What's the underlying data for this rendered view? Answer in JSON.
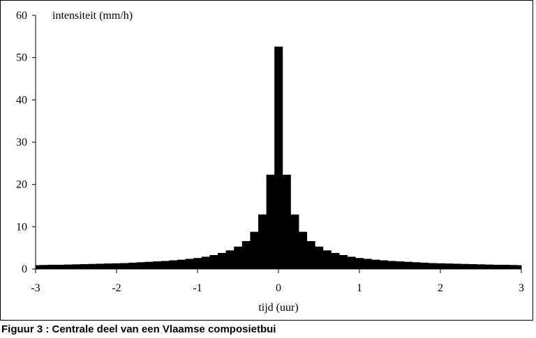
{
  "caption": "Figuur 3 : Centrale deel van een Vlaamse composietbui",
  "chart_data": {
    "type": "bar",
    "title": "",
    "ylabel": "intensiteit (mm/h)",
    "xlabel": "tijd (uur)",
    "xlim": [
      -3,
      3
    ],
    "ylim": [
      0,
      60
    ],
    "x_ticks": [
      "-3",
      "-2",
      "-1",
      "0",
      "1",
      "2",
      "3"
    ],
    "y_ticks": [
      "0",
      "10",
      "20",
      "30",
      "40",
      "50",
      "60"
    ],
    "bar_width": 0.1,
    "bar_color": "#000000",
    "grid": false,
    "bars": [
      {
        "x": -3.0,
        "value": 0.9
      },
      {
        "x": -2.9,
        "value": 0.95
      },
      {
        "x": -2.8,
        "value": 1.0
      },
      {
        "x": -2.7,
        "value": 1.0
      },
      {
        "x": -2.6,
        "value": 1.05
      },
      {
        "x": -2.5,
        "value": 1.1
      },
      {
        "x": -2.4,
        "value": 1.15
      },
      {
        "x": -2.3,
        "value": 1.2
      },
      {
        "x": -2.2,
        "value": 1.25
      },
      {
        "x": -2.1,
        "value": 1.3
      },
      {
        "x": -2.0,
        "value": 1.35
      },
      {
        "x": -1.9,
        "value": 1.4
      },
      {
        "x": -1.8,
        "value": 1.5
      },
      {
        "x": -1.7,
        "value": 1.6
      },
      {
        "x": -1.6,
        "value": 1.7
      },
      {
        "x": -1.5,
        "value": 1.8
      },
      {
        "x": -1.4,
        "value": 1.9
      },
      {
        "x": -1.3,
        "value": 2.05
      },
      {
        "x": -1.2,
        "value": 2.2
      },
      {
        "x": -1.1,
        "value": 2.4
      },
      {
        "x": -1.0,
        "value": 2.6
      },
      {
        "x": -0.9,
        "value": 2.9
      },
      {
        "x": -0.8,
        "value": 3.3
      },
      {
        "x": -0.7,
        "value": 3.8
      },
      {
        "x": -0.6,
        "value": 4.4
      },
      {
        "x": -0.5,
        "value": 5.3
      },
      {
        "x": -0.4,
        "value": 6.6
      },
      {
        "x": -0.3,
        "value": 8.8
      },
      {
        "x": -0.2,
        "value": 12.9
      },
      {
        "x": -0.1,
        "value": 22.3
      },
      {
        "x": 0.0,
        "value": 52.6
      },
      {
        "x": 0.1,
        "value": 22.3
      },
      {
        "x": 0.2,
        "value": 12.9
      },
      {
        "x": 0.3,
        "value": 8.8
      },
      {
        "x": 0.4,
        "value": 6.6
      },
      {
        "x": 0.5,
        "value": 5.3
      },
      {
        "x": 0.6,
        "value": 4.4
      },
      {
        "x": 0.7,
        "value": 3.8
      },
      {
        "x": 0.8,
        "value": 3.3
      },
      {
        "x": 0.9,
        "value": 2.9
      },
      {
        "x": 1.0,
        "value": 2.6
      },
      {
        "x": 1.1,
        "value": 2.4
      },
      {
        "x": 1.2,
        "value": 2.2
      },
      {
        "x": 1.3,
        "value": 2.05
      },
      {
        "x": 1.4,
        "value": 1.9
      },
      {
        "x": 1.5,
        "value": 1.8
      },
      {
        "x": 1.6,
        "value": 1.7
      },
      {
        "x": 1.7,
        "value": 1.6
      },
      {
        "x": 1.8,
        "value": 1.5
      },
      {
        "x": 1.9,
        "value": 1.4
      },
      {
        "x": 2.0,
        "value": 1.35
      },
      {
        "x": 2.1,
        "value": 1.3
      },
      {
        "x": 2.2,
        "value": 1.25
      },
      {
        "x": 2.3,
        "value": 1.2
      },
      {
        "x": 2.4,
        "value": 1.15
      },
      {
        "x": 2.5,
        "value": 1.1
      },
      {
        "x": 2.6,
        "value": 1.05
      },
      {
        "x": 2.7,
        "value": 1.0
      },
      {
        "x": 2.8,
        "value": 1.0
      },
      {
        "x": 2.9,
        "value": 0.95
      },
      {
        "x": 3.0,
        "value": 0.9
      }
    ]
  }
}
